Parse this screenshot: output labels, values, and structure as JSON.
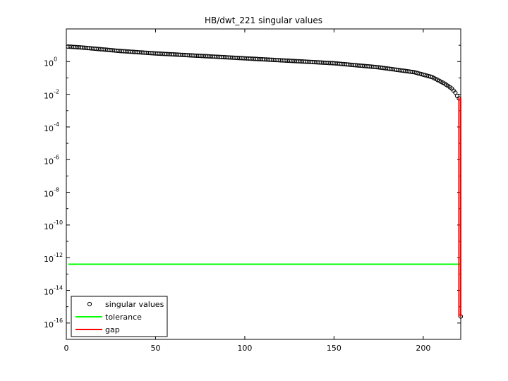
{
  "chart_data": {
    "type": "scatter",
    "title": "HB/dwt_221 singular values",
    "xlabel": "",
    "ylabel": "",
    "y_scale": "log",
    "xlim": [
      0,
      221
    ],
    "ylim_exponent": [
      -17,
      2
    ],
    "x_ticks": [
      {
        "value": 0,
        "label": "0"
      },
      {
        "value": 50,
        "label": "50"
      },
      {
        "value": 100,
        "label": "100"
      },
      {
        "value": 150,
        "label": "150"
      },
      {
        "value": 200,
        "label": "200"
      }
    ],
    "y_ticks": [
      {
        "exponent": 0,
        "base": "10",
        "exp": "0"
      },
      {
        "exponent": -2,
        "base": "10",
        "exp": "-2"
      },
      {
        "exponent": -4,
        "base": "10",
        "exp": "-4"
      },
      {
        "exponent": -6,
        "base": "10",
        "exp": "-6"
      },
      {
        "exponent": -8,
        "base": "10",
        "exp": "-8"
      },
      {
        "exponent": -10,
        "base": "10",
        "exp": "-10"
      },
      {
        "exponent": -12,
        "base": "10",
        "exp": "-12"
      },
      {
        "exponent": -14,
        "base": "10",
        "exp": "-14"
      },
      {
        "exponent": -16,
        "base": "10",
        "exp": "-16"
      }
    ],
    "series": [
      {
        "name": "singular values",
        "marker": "circle",
        "color": "#000000",
        "n": 221,
        "log10_profile": [
          {
            "i": 1,
            "log10": 0.92
          },
          {
            "i": 10,
            "log10": 0.85
          },
          {
            "i": 30,
            "log10": 0.65
          },
          {
            "i": 50,
            "log10": 0.5
          },
          {
            "i": 75,
            "log10": 0.35
          },
          {
            "i": 100,
            "log10": 0.2
          },
          {
            "i": 125,
            "log10": 0.05
          },
          {
            "i": 150,
            "log10": -0.1
          },
          {
            "i": 175,
            "log10": -0.35
          },
          {
            "i": 195,
            "log10": -0.65
          },
          {
            "i": 205,
            "log10": -0.95
          },
          {
            "i": 212,
            "log10": -1.35
          },
          {
            "i": 216,
            "log10": -1.65
          },
          {
            "i": 218,
            "log10": -1.9
          },
          {
            "i": 219,
            "log10": -2.1
          },
          {
            "i": 220,
            "log10": -2.25
          },
          {
            "i": 221,
            "log10": -15.6
          }
        ]
      },
      {
        "name": "tolerance",
        "type": "line",
        "color": "#00ff00",
        "log10_value": -12.4,
        "x_range": [
          1,
          221
        ]
      },
      {
        "name": "gap",
        "type": "line",
        "color": "#ff0000",
        "segments": [
          {
            "x": [
              220,
              220
            ],
            "log10": [
              -2.2,
              -15.6
            ]
          },
          {
            "x": [
              221,
              221
            ],
            "log10": [
              -2.2,
              -15.6
            ]
          }
        ]
      }
    ],
    "legend": {
      "position": "bottom-left",
      "entries": [
        "singular values",
        "tolerance",
        "gap"
      ]
    },
    "grid": false
  }
}
